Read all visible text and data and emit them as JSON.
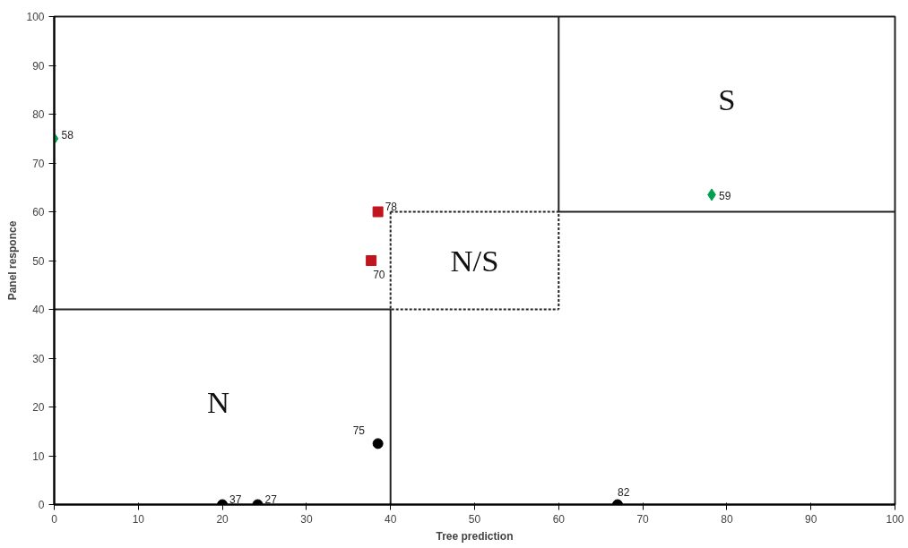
{
  "chart_data": {
    "type": "scatter",
    "xlabel": "Tree prediction",
    "ylabel": "Panel responce",
    "xlim": [
      0,
      100
    ],
    "ylim": [
      0,
      100
    ],
    "xticks": [
      0,
      10,
      20,
      30,
      40,
      50,
      60,
      70,
      80,
      90,
      100
    ],
    "yticks": [
      0,
      10,
      20,
      30,
      40,
      50,
      60,
      70,
      80,
      90,
      100
    ],
    "grid": false,
    "series": [
      {
        "marker": "circle",
        "color": "#000000",
        "x": [
          20,
          24.2,
          38.5,
          67
        ],
        "values": [
          0,
          0,
          12.5,
          0
        ]
      },
      {
        "marker": "square",
        "color": "#c0141e",
        "x": [
          38.5,
          37.7
        ],
        "values": [
          60,
          50
        ]
      },
      {
        "marker": "diamond",
        "color": "#00a050",
        "x": [
          0,
          78.2
        ],
        "values": [
          75,
          63.5
        ]
      },
      {
        "type": "line",
        "marker": "none",
        "line_style": "solid",
        "color": "#222222",
        "x": [
          0,
          40,
          40
        ],
        "values": [
          40,
          40,
          0
        ]
      },
      {
        "type": "line",
        "marker": "none",
        "line_style": "solid",
        "color": "#222222",
        "x": [
          60,
          60,
          100
        ],
        "values": [
          100,
          60,
          60
        ]
      },
      {
        "type": "line",
        "marker": "none",
        "line_style": "dotted",
        "color": "#222222",
        "x": [
          40,
          60,
          60
        ],
        "values": [
          60,
          60,
          40
        ]
      },
      {
        "type": "line",
        "marker": "none",
        "line_style": "dotted",
        "color": "#222222",
        "x": [
          40,
          40,
          60
        ],
        "values": [
          60,
          40,
          40
        ]
      }
    ],
    "annotations": [
      {
        "text": "37",
        "x": 20,
        "y": 0
      },
      {
        "text": "27",
        "x": 24.2,
        "y": 0
      },
      {
        "text": "75",
        "x": 38.5,
        "y": 12.5
      },
      {
        "text": "82",
        "x": 67,
        "y": 0
      },
      {
        "text": "78",
        "x": 38.5,
        "y": 60
      },
      {
        "text": "70",
        "x": 37.7,
        "y": 50
      },
      {
        "text": "58",
        "x": 0,
        "y": 75
      },
      {
        "text": "59",
        "x": 78.2,
        "y": 63.5
      },
      "N",
      "N/S",
      "S"
    ]
  }
}
